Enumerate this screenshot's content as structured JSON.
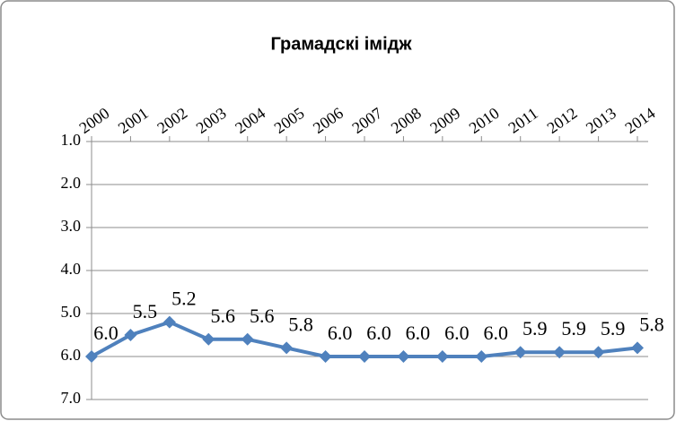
{
  "chart_data": {
    "type": "line",
    "title": "Грамадскі імідж",
    "categories": [
      "2000",
      "2001",
      "2002",
      "2003",
      "2004",
      "2005",
      "2006",
      "2007",
      "2008",
      "2009",
      "2010",
      "2011",
      "2012",
      "2013",
      "2014"
    ],
    "series": [
      {
        "color": "#4f81bd",
        "values": [
          6.0,
          5.5,
          5.2,
          5.6,
          5.6,
          5.8,
          6.0,
          6.0,
          6.0,
          6.0,
          6.0,
          5.9,
          5.9,
          5.9,
          5.8
        ],
        "value_labels": [
          "6.0",
          "5.5",
          "5.2",
          "5.6",
          "5.6",
          "5.8",
          "6.0",
          "6.0",
          "6.0",
          "6.0",
          "6.0",
          "5.9",
          "5.9",
          "5.9",
          "5.8"
        ]
      }
    ],
    "ylim": [
      1,
      7
    ],
    "y_inverted": true,
    "yticks": [
      {
        "value": 1,
        "label": "1.0"
      },
      {
        "value": 2,
        "label": "2.0"
      },
      {
        "value": 3,
        "label": "3.0"
      },
      {
        "value": 4,
        "label": "4.0"
      },
      {
        "value": 5,
        "label": "5.0"
      },
      {
        "value": 6,
        "label": "6.0"
      },
      {
        "value": 7,
        "label": "7.0"
      }
    ],
    "grid": true
  }
}
